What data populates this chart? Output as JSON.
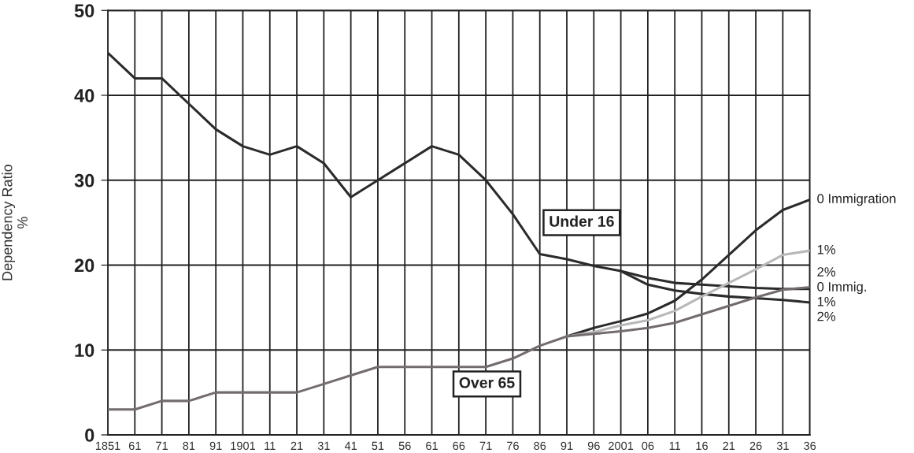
{
  "chart_data": {
    "type": "line",
    "ylabel": "Dependency Ratio\n%",
    "categories": [
      "1851",
      "61",
      "71",
      "81",
      "91",
      "1901",
      "11",
      "21",
      "31",
      "41",
      "51",
      "56",
      "61",
      "66",
      "71",
      "76",
      "86",
      "91",
      "96",
      "2001",
      "06",
      "11",
      "16",
      "21",
      "26",
      "31",
      "36"
    ],
    "series": [
      {
        "name": "0 Immig.",
        "color": "#2b2b2b",
        "values": [
          45,
          42,
          42,
          39,
          36,
          34,
          33,
          34,
          32,
          28,
          30,
          32,
          34,
          33,
          30,
          26,
          21.3,
          20.7,
          19.9,
          19.3,
          18.5,
          17.9,
          17.7,
          17.5,
          17.3,
          17.2,
          17.2
        ]
      },
      {
        "name": "1%",
        "color": "#2b2b2b",
        "values": [
          null,
          null,
          null,
          null,
          null,
          null,
          null,
          null,
          null,
          null,
          null,
          null,
          null,
          null,
          null,
          null,
          null,
          null,
          null,
          19.3,
          17.7,
          17.0,
          16.6,
          16.3,
          16.1,
          15.9,
          15.6
        ]
      },
      {
        "name": "0 Immigration",
        "color": "#2b2b2b",
        "values": [
          null,
          null,
          null,
          null,
          null,
          null,
          null,
          null,
          null,
          null,
          null,
          null,
          null,
          null,
          null,
          null,
          null,
          11.6,
          12.6,
          13.4,
          14.3,
          15.8,
          18.3,
          21.2,
          24.1,
          26.5,
          27.7
        ]
      },
      {
        "name": "1%",
        "color": "#b8b8b8",
        "values": [
          null,
          null,
          null,
          null,
          null,
          null,
          null,
          null,
          null,
          null,
          null,
          null,
          null,
          null,
          null,
          null,
          null,
          11.6,
          12.1,
          12.9,
          13.5,
          14.6,
          16.3,
          17.9,
          19.5,
          21.2,
          21.7
        ]
      },
      {
        "name": "2%",
        "color": "#736c6c",
        "values": [
          3,
          3,
          4,
          4,
          5,
          5,
          5,
          5,
          6,
          7,
          8,
          8,
          8,
          8,
          8,
          9.0,
          10.5,
          11.6,
          11.9,
          12.2,
          12.6,
          13.2,
          14.2,
          15.2,
          16.2,
          17.1,
          17.4
        ]
      }
    ],
    "annotations": [
      "Under 16",
      "Over 65",
      "2%"
    ],
    "ylim": [
      0,
      50
    ],
    "yticks": [
      0,
      10,
      20,
      30,
      40,
      50
    ],
    "grid": true,
    "legend": false
  }
}
